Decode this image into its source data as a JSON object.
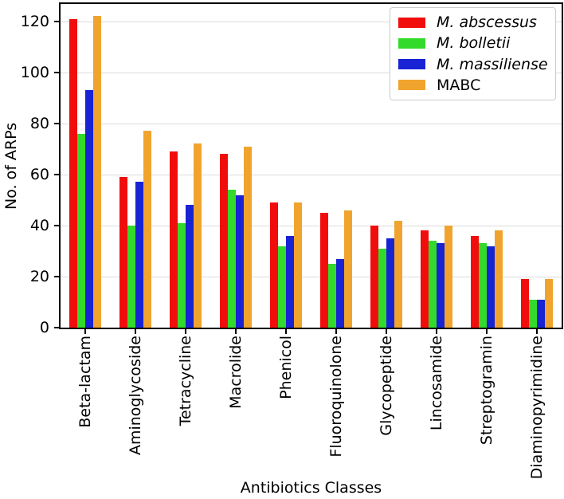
{
  "figure": {
    "background": "#ffffff",
    "spine_color": "#000000",
    "text_color": "#000000"
  },
  "chart_data": {
    "type": "bar",
    "title": "",
    "xlabel": "Antibiotics Classes",
    "ylabel": "No. of ARPs",
    "categories": [
      "Beta-lactam",
      "Aminoglycoside",
      "Tetracycline",
      "Macrolide",
      "Phenicol",
      "Fluoroquinolone",
      "Glycopeptide",
      "Lincosamide",
      "Streptogramin",
      "Diaminopyrimidine"
    ],
    "series": [
      {
        "name": "M. abscessus",
        "italic": true,
        "color": "#f20d0d",
        "values": [
          121,
          59,
          69,
          68,
          49,
          45,
          40,
          38,
          36,
          19
        ]
      },
      {
        "name": "M. bolletii",
        "italic": true,
        "color": "#33da2b",
        "values": [
          76,
          40,
          41,
          54,
          32,
          25,
          31,
          34,
          33,
          11
        ]
      },
      {
        "name": "M. massiliense",
        "italic": true,
        "color": "#1823d3",
        "values": [
          93,
          57,
          48,
          52,
          36,
          27,
          35,
          33,
          32,
          11
        ]
      },
      {
        "name": "MABC",
        "italic": false,
        "color": "#f0a42e",
        "values": [
          122,
          77,
          72,
          71,
          49,
          46,
          42,
          40,
          38,
          19
        ]
      }
    ],
    "y_ticks": [
      0,
      20,
      40,
      60,
      80,
      100,
      120
    ],
    "ylim": [
      0,
      126.8
    ],
    "grid": "horizontal",
    "grid_color": "#dcdcdc",
    "legend_position": "top-right"
  }
}
